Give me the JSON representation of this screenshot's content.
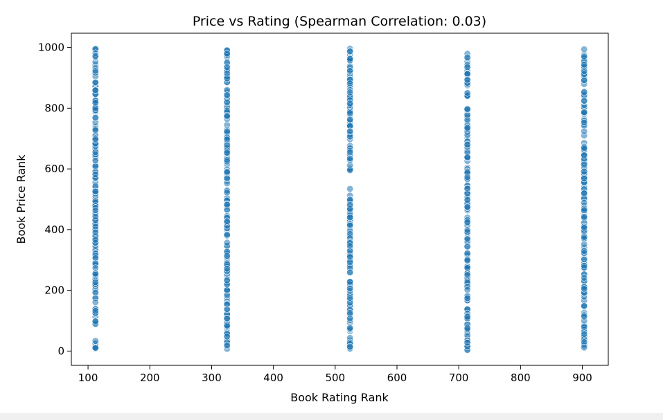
{
  "chart_data": {
    "type": "scatter",
    "title": "Price vs Rating (Spearman Correlation: 0.03)",
    "xlabel": "Book Rating Rank",
    "ylabel": "Book Price Rank",
    "xlim": [
      73,
      942
    ],
    "ylim": [
      -47,
      1047
    ],
    "xticks": [
      100,
      200,
      300,
      400,
      500,
      600,
      700,
      800,
      900
    ],
    "yticks": [
      0,
      200,
      400,
      600,
      800,
      1000
    ],
    "grid": false,
    "legend": "none",
    "series": [
      {
        "name": "books",
        "color": "#1f77b4",
        "x_groups": [
          112,
          325,
          524,
          714,
          903
        ],
        "y_range": [
          3,
          998
        ],
        "points_per_group": 200,
        "gaps": [
          [],
          [],
          [
            [
              535,
              590
            ]
          ],
          [],
          []
        ]
      }
    ]
  }
}
